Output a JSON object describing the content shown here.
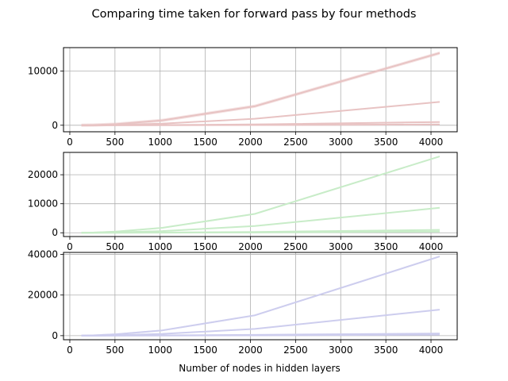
{
  "figure": {
    "title": "Comparing time taken for forward pass by four methods",
    "xlabel": "Number of nodes in hidden layers"
  },
  "chart_data": [
    {
      "type": "line",
      "title": "",
      "xlabel": "",
      "ylabel": "",
      "xlim": [
        -70,
        4290
      ],
      "ylim": [
        -1200,
        14300
      ],
      "xticks": [
        0,
        500,
        1000,
        1500,
        2000,
        2500,
        3000,
        3500,
        4000
      ],
      "yticks": [
        0,
        10000
      ],
      "grid": true,
      "color": "#e8c3c3",
      "series": [
        {
          "x": [
            128,
            256,
            512,
            1024,
            2048,
            4096
          ],
          "values": [
            10,
            40,
            200,
            900,
            3500,
            13300
          ],
          "band": 300
        },
        {
          "x": [
            128,
            256,
            512,
            1024,
            2048,
            4096
          ],
          "values": [
            5,
            20,
            80,
            300,
            1200,
            4300
          ],
          "band": 80
        },
        {
          "x": [
            128,
            256,
            512,
            1024,
            2048,
            4096
          ],
          "values": [
            2,
            5,
            15,
            50,
            150,
            600
          ],
          "band": 120
        },
        {
          "x": [
            128,
            256,
            512,
            1024,
            2048,
            4096
          ],
          "values": [
            1,
            2,
            5,
            15,
            40,
            150
          ],
          "band": 60
        }
      ]
    },
    {
      "type": "line",
      "title": "",
      "xlabel": "",
      "ylabel": "",
      "xlim": [
        -70,
        4290
      ],
      "ylim": [
        -1300,
        27700
      ],
      "xticks": [
        0,
        500,
        1000,
        1500,
        2000,
        2500,
        3000,
        3500,
        4000
      ],
      "yticks": [
        0,
        10000,
        20000
      ],
      "grid": true,
      "color": "#c8ecc8",
      "series": [
        {
          "x": [
            128,
            256,
            512,
            1024,
            2048,
            4096
          ],
          "values": [
            20,
            80,
            400,
            1700,
            6500,
            26300
          ],
          "band": 250
        },
        {
          "x": [
            128,
            256,
            512,
            1024,
            2048,
            4096
          ],
          "values": [
            10,
            40,
            150,
            600,
            2300,
            8600
          ],
          "band": 120
        },
        {
          "x": [
            128,
            256,
            512,
            1024,
            2048,
            4096
          ],
          "values": [
            3,
            10,
            30,
            100,
            300,
            1000
          ],
          "band": 60
        },
        {
          "x": [
            128,
            256,
            512,
            1024,
            2048,
            4096
          ],
          "values": [
            1,
            3,
            10,
            30,
            100,
            400
          ],
          "band": 30
        }
      ]
    },
    {
      "type": "line",
      "title": "",
      "xlabel": "Number of nodes in hidden layers",
      "ylabel": "",
      "xlim": [
        -70,
        4290
      ],
      "ylim": [
        -2000,
        41000
      ],
      "xticks": [
        0,
        500,
        1000,
        1500,
        2000,
        2500,
        3000,
        3500,
        4000
      ],
      "yticks": [
        0,
        20000,
        40000
      ],
      "grid": true,
      "color": "#cdcdee",
      "series": [
        {
          "x": [
            128,
            256,
            512,
            1024,
            2048,
            4096
          ],
          "values": [
            30,
            150,
            700,
            2600,
            10000,
            39000
          ],
          "band": 400
        },
        {
          "x": [
            128,
            256,
            512,
            1024,
            2048,
            4096
          ],
          "values": [
            15,
            50,
            200,
            900,
            3300,
            12800
          ],
          "band": 200
        },
        {
          "x": [
            128,
            256,
            512,
            1024,
            2048,
            4096
          ],
          "values": [
            4,
            15,
            50,
            150,
            400,
            1100
          ],
          "band": 100
        },
        {
          "x": [
            128,
            256,
            512,
            1024,
            2048,
            4096
          ],
          "values": [
            1,
            5,
            15,
            40,
            150,
            500
          ],
          "band": 50
        }
      ]
    }
  ]
}
